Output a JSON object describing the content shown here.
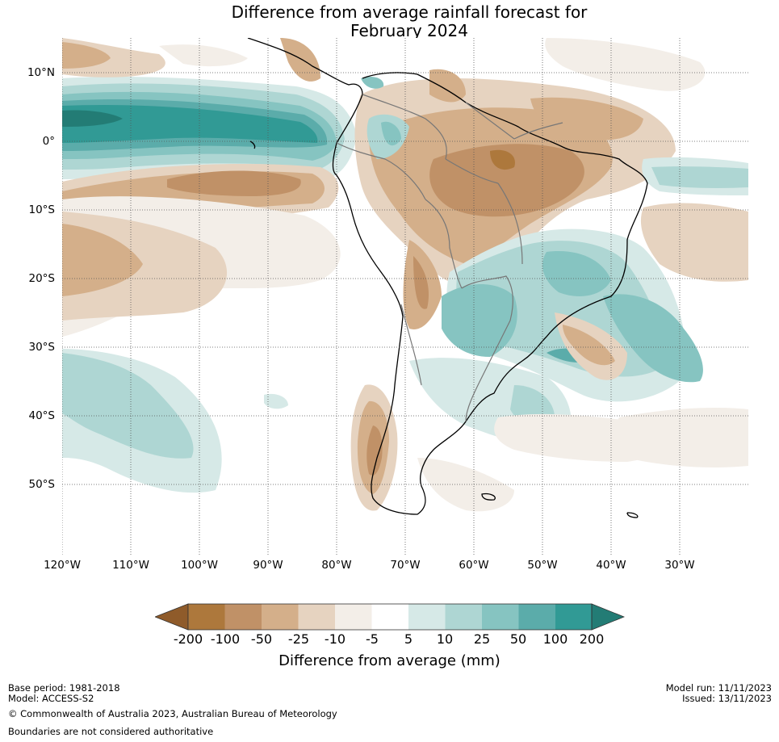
{
  "title": {
    "line1": "Difference from average rainfall forecast for",
    "line2": "February 2024"
  },
  "map": {
    "projection": "equirectangular",
    "lon_range": [
      -120,
      -20
    ],
    "lat_range": [
      -60,
      15
    ],
    "gridlines": "dotted",
    "lat_labels": [
      "10°N",
      "0°",
      "10°S",
      "20°S",
      "30°S",
      "40°S",
      "50°S"
    ],
    "lon_labels": [
      "120°W",
      "110°W",
      "100°W",
      "90°W",
      "80°W",
      "70°W",
      "60°W",
      "50°W",
      "40°W",
      "30°W"
    ],
    "colors": {
      "-200": "#8f5b2a",
      "-100": "#ad783c",
      "-50": "#c09167",
      "-25": "#d4af8a",
      "-10": "#e6d3c0",
      "-5": "#f3eee8",
      "neutral": "#ffffff",
      "5": "#d6e9e7",
      "10": "#aed6d3",
      "25": "#86c4c1",
      "50": "#5bacaa",
      "100": "#319a95",
      "200": "#237c75"
    }
  },
  "colorbar": {
    "ticks": [
      "-200",
      "-100",
      "-50",
      "-25",
      "-10",
      "-5",
      "5",
      "10",
      "25",
      "50",
      "100",
      "200"
    ],
    "label": "Difference from average (mm)"
  },
  "footer": {
    "base_period": "Base period: 1981-2018",
    "model": "Model: ACCESS-S2",
    "model_run": "Model run: 11/11/2023",
    "issued": "Issued: 13/11/2023",
    "copyright": "© Commonwealth of Australia 2023, Australian Bureau of Meteorology",
    "disclaimer": "Boundaries are not considered authoritative"
  }
}
